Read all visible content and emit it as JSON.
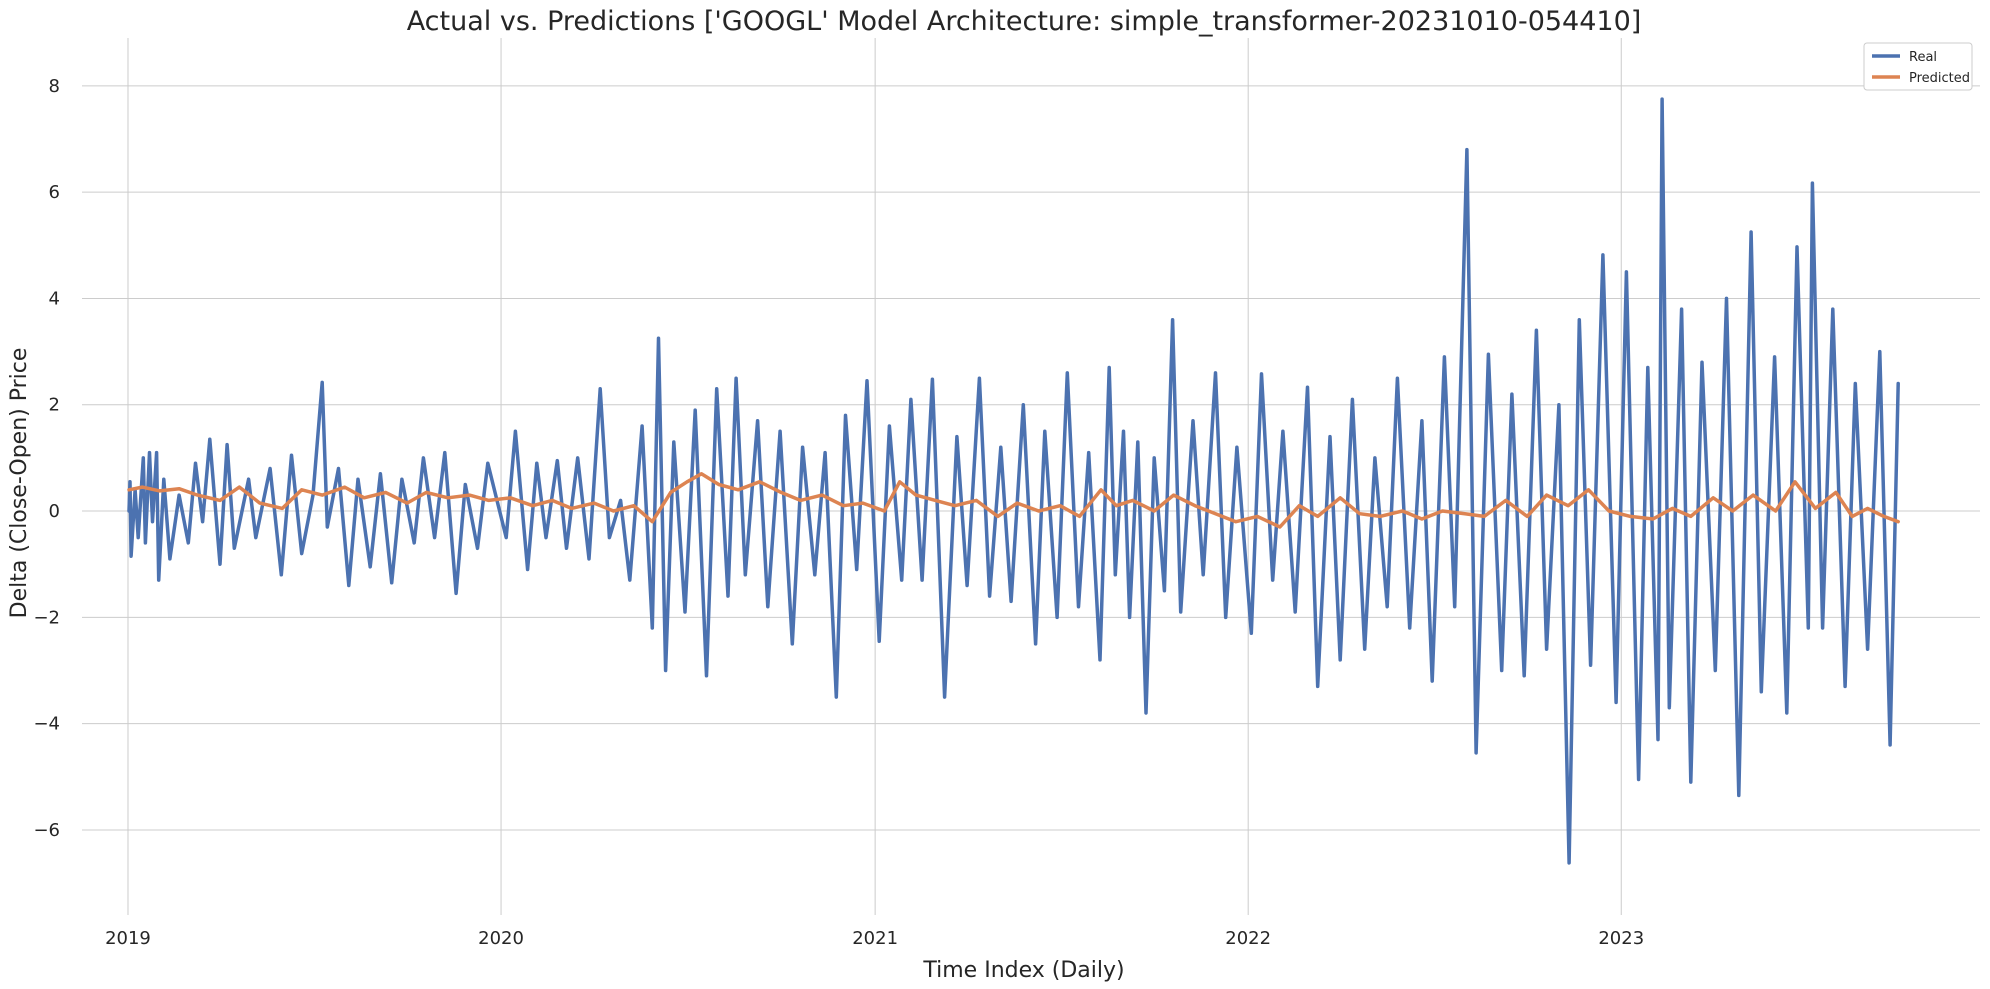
{
  "chart_data": {
    "type": "line",
    "title": "Actual vs. Predictions ['GOOGL' Model Architecture: simple_transformer-20231010-054410]",
    "xlabel": "Time Index (Daily)",
    "ylabel": "Delta (Close-Open) Price",
    "x_axis": {
      "type": "date",
      "range": [
        "2018-11-17",
        "2023-12-18"
      ],
      "ticks": [
        "2019",
        "2020",
        "2021",
        "2022",
        "2023"
      ]
    },
    "y_axis": {
      "range": [
        -7.6,
        8.9
      ],
      "ticks": [
        -6,
        -4,
        -2,
        0,
        2,
        4,
        6,
        8
      ],
      "tick_labels": [
        "−6",
        "−4",
        "−2",
        "0",
        "2",
        "4",
        "6",
        "8"
      ]
    },
    "grid": true,
    "legend": {
      "placement": "top-right"
    },
    "series": [
      {
        "name": "Real",
        "color": "#4c72b0",
        "points": [
          [
            "2019-01-02",
            0.0
          ],
          [
            "2019-01-03",
            0.55
          ],
          [
            "2019-01-04",
            -0.85
          ],
          [
            "2019-01-08",
            0.4
          ],
          [
            "2019-01-11",
            -0.5
          ],
          [
            "2019-01-16",
            1.0
          ],
          [
            "2019-01-18",
            -0.6
          ],
          [
            "2019-01-22",
            1.1
          ],
          [
            "2019-01-25",
            -0.2
          ],
          [
            "2019-01-29",
            1.1
          ],
          [
            "2019-01-31",
            -1.3
          ],
          [
            "2019-02-05",
            0.6
          ],
          [
            "2019-02-11",
            -0.9
          ],
          [
            "2019-02-20",
            0.3
          ],
          [
            "2019-03-01",
            -0.6
          ],
          [
            "2019-03-08",
            0.9
          ],
          [
            "2019-03-15",
            -0.2
          ],
          [
            "2019-03-22",
            1.35
          ],
          [
            "2019-04-01",
            -1.0
          ],
          [
            "2019-04-08",
            1.25
          ],
          [
            "2019-04-15",
            -0.7
          ],
          [
            "2019-04-29",
            0.6
          ],
          [
            "2019-05-06",
            -0.5
          ],
          [
            "2019-05-20",
            0.8
          ],
          [
            "2019-05-31",
            -1.2
          ],
          [
            "2019-06-10",
            1.05
          ],
          [
            "2019-06-20",
            -0.8
          ],
          [
            "2019-07-01",
            0.3
          ],
          [
            "2019-07-10",
            2.42
          ],
          [
            "2019-07-15",
            -0.3
          ],
          [
            "2019-07-26",
            0.8
          ],
          [
            "2019-08-05",
            -1.4
          ],
          [
            "2019-08-14",
            0.6
          ],
          [
            "2019-08-26",
            -1.05
          ],
          [
            "2019-09-05",
            0.7
          ],
          [
            "2019-09-16",
            -1.35
          ],
          [
            "2019-09-26",
            0.6
          ],
          [
            "2019-10-08",
            -0.6
          ],
          [
            "2019-10-17",
            1.0
          ],
          [
            "2019-10-28",
            -0.5
          ],
          [
            "2019-11-07",
            1.1
          ],
          [
            "2019-11-18",
            -1.55
          ],
          [
            "2019-11-27",
            0.5
          ],
          [
            "2019-12-09",
            -0.7
          ],
          [
            "2019-12-19",
            0.9
          ],
          [
            "2020-01-06",
            -0.5
          ],
          [
            "2020-01-15",
            1.5
          ],
          [
            "2020-01-27",
            -1.1
          ],
          [
            "2020-02-05",
            0.9
          ],
          [
            "2020-02-14",
            -0.5
          ],
          [
            "2020-02-25",
            0.95
          ],
          [
            "2020-03-05",
            -0.7
          ],
          [
            "2020-03-16",
            1.0
          ],
          [
            "2020-03-27",
            -0.9
          ],
          [
            "2020-04-07",
            2.3
          ],
          [
            "2020-04-16",
            -0.5
          ],
          [
            "2020-04-27",
            0.2
          ],
          [
            "2020-05-06",
            -1.3
          ],
          [
            "2020-05-18",
            1.6
          ],
          [
            "2020-05-28",
            -2.2
          ],
          [
            "2020-06-03",
            3.25
          ],
          [
            "2020-06-10",
            -3.0
          ],
          [
            "2020-06-18",
            1.3
          ],
          [
            "2020-06-29",
            -1.9
          ],
          [
            "2020-07-09",
            1.9
          ],
          [
            "2020-07-20",
            -3.1
          ],
          [
            "2020-07-30",
            2.3
          ],
          [
            "2020-08-10",
            -1.6
          ],
          [
            "2020-08-18",
            2.5
          ],
          [
            "2020-08-27",
            -1.2
          ],
          [
            "2020-09-08",
            1.7
          ],
          [
            "2020-09-18",
            -1.8
          ],
          [
            "2020-09-30",
            1.5
          ],
          [
            "2020-10-12",
            -2.5
          ],
          [
            "2020-10-22",
            1.2
          ],
          [
            "2020-11-03",
            -1.2
          ],
          [
            "2020-11-13",
            1.1
          ],
          [
            "2020-11-24",
            -3.5
          ],
          [
            "2020-12-03",
            1.8
          ],
          [
            "2020-12-14",
            -1.1
          ],
          [
            "2020-12-24",
            2.45
          ],
          [
            "2021-01-05",
            -2.45
          ],
          [
            "2021-01-15",
            1.6
          ],
          [
            "2021-01-27",
            -1.3
          ],
          [
            "2021-02-05",
            2.1
          ],
          [
            "2021-02-16",
            -1.3
          ],
          [
            "2021-02-26",
            2.48
          ],
          [
            "2021-03-10",
            -3.5
          ],
          [
            "2021-03-22",
            1.4
          ],
          [
            "2021-04-01",
            -1.4
          ],
          [
            "2021-04-13",
            2.5
          ],
          [
            "2021-04-23",
            -1.6
          ],
          [
            "2021-05-04",
            1.2
          ],
          [
            "2021-05-14",
            -1.7
          ],
          [
            "2021-05-26",
            2.0
          ],
          [
            "2021-06-07",
            -2.5
          ],
          [
            "2021-06-16",
            1.5
          ],
          [
            "2021-06-28",
            -2.0
          ],
          [
            "2021-07-08",
            2.6
          ],
          [
            "2021-07-19",
            -1.8
          ],
          [
            "2021-07-29",
            1.1
          ],
          [
            "2021-08-09",
            -2.8
          ],
          [
            "2021-08-18",
            2.7
          ],
          [
            "2021-08-24",
            -1.2
          ],
          [
            "2021-09-01",
            1.5
          ],
          [
            "2021-09-07",
            -2.0
          ],
          [
            "2021-09-15",
            1.3
          ],
          [
            "2021-09-23",
            -3.8
          ],
          [
            "2021-10-01",
            1.0
          ],
          [
            "2021-10-11",
            -1.5
          ],
          [
            "2021-10-19",
            3.6
          ],
          [
            "2021-10-27",
            -1.9
          ],
          [
            "2021-11-08",
            1.7
          ],
          [
            "2021-11-18",
            -1.2
          ],
          [
            "2021-11-30",
            2.6
          ],
          [
            "2021-12-10",
            -2.0
          ],
          [
            "2021-12-21",
            1.2
          ],
          [
            "2022-01-04",
            -2.3
          ],
          [
            "2022-01-14",
            2.58
          ],
          [
            "2022-01-25",
            -1.3
          ],
          [
            "2022-02-04",
            1.5
          ],
          [
            "2022-02-16",
            -1.9
          ],
          [
            "2022-02-28",
            2.33
          ],
          [
            "2022-03-10",
            -3.3
          ],
          [
            "2022-03-22",
            1.4
          ],
          [
            "2022-04-01",
            -2.8
          ],
          [
            "2022-04-13",
            2.1
          ],
          [
            "2022-04-25",
            -2.6
          ],
          [
            "2022-05-05",
            1.0
          ],
          [
            "2022-05-17",
            -1.8
          ],
          [
            "2022-05-27",
            2.5
          ],
          [
            "2022-06-08",
            -2.2
          ],
          [
            "2022-06-20",
            1.7
          ],
          [
            "2022-06-30",
            -3.2
          ],
          [
            "2022-07-12",
            2.9
          ],
          [
            "2022-07-22",
            -1.8
          ],
          [
            "2022-08-03",
            6.8
          ],
          [
            "2022-08-12",
            -4.55
          ],
          [
            "2022-08-24",
            2.95
          ],
          [
            "2022-09-06",
            -3.0
          ],
          [
            "2022-09-16",
            2.2
          ],
          [
            "2022-09-28",
            -3.1
          ],
          [
            "2022-10-10",
            3.4
          ],
          [
            "2022-10-20",
            -2.6
          ],
          [
            "2022-11-01",
            2.0
          ],
          [
            "2022-11-11",
            -6.62
          ],
          [
            "2022-11-21",
            3.6
          ],
          [
            "2022-12-02",
            -2.9
          ],
          [
            "2022-12-14",
            4.82
          ],
          [
            "2022-12-27",
            -3.6
          ],
          [
            "2023-01-06",
            4.5
          ],
          [
            "2023-01-18",
            -5.05
          ],
          [
            "2023-01-27",
            2.7
          ],
          [
            "2023-02-06",
            -4.3
          ],
          [
            "2023-02-10",
            7.75
          ],
          [
            "2023-02-17",
            -3.7
          ],
          [
            "2023-03-01",
            3.8
          ],
          [
            "2023-03-10",
            -5.1
          ],
          [
            "2023-03-21",
            2.8
          ],
          [
            "2023-04-03",
            -3.0
          ],
          [
            "2023-04-14",
            4.0
          ],
          [
            "2023-04-26",
            -5.35
          ],
          [
            "2023-05-08",
            5.25
          ],
          [
            "2023-05-18",
            -3.4
          ],
          [
            "2023-05-31",
            2.9
          ],
          [
            "2023-06-12",
            -3.8
          ],
          [
            "2023-06-22",
            4.97
          ],
          [
            "2023-07-03",
            -2.2
          ],
          [
            "2023-07-07",
            6.17
          ],
          [
            "2023-07-17",
            -2.2
          ],
          [
            "2023-07-27",
            3.8
          ],
          [
            "2023-08-08",
            -3.3
          ],
          [
            "2023-08-18",
            2.4
          ],
          [
            "2023-08-30",
            -2.6
          ],
          [
            "2023-09-11",
            3.0
          ],
          [
            "2023-09-21",
            -4.4
          ],
          [
            "2023-09-29",
            2.4
          ]
        ]
      },
      {
        "name": "Predicted",
        "color": "#dd8452",
        "points": [
          [
            "2019-01-02",
            0.4
          ],
          [
            "2019-01-15",
            0.45
          ],
          [
            "2019-02-01",
            0.38
          ],
          [
            "2019-02-20",
            0.42
          ],
          [
            "2019-03-10",
            0.3
          ],
          [
            "2019-04-01",
            0.2
          ],
          [
            "2019-04-20",
            0.45
          ],
          [
            "2019-05-10",
            0.15
          ],
          [
            "2019-06-01",
            0.05
          ],
          [
            "2019-06-20",
            0.4
          ],
          [
            "2019-07-10",
            0.3
          ],
          [
            "2019-08-01",
            0.45
          ],
          [
            "2019-08-20",
            0.25
          ],
          [
            "2019-09-10",
            0.35
          ],
          [
            "2019-10-01",
            0.15
          ],
          [
            "2019-10-20",
            0.35
          ],
          [
            "2019-11-10",
            0.25
          ],
          [
            "2019-12-01",
            0.3
          ],
          [
            "2019-12-20",
            0.2
          ],
          [
            "2020-01-10",
            0.25
          ],
          [
            "2020-02-01",
            0.1
          ],
          [
            "2020-02-20",
            0.2
          ],
          [
            "2020-03-10",
            0.05
          ],
          [
            "2020-04-01",
            0.15
          ],
          [
            "2020-04-20",
            0.0
          ],
          [
            "2020-05-10",
            0.1
          ],
          [
            "2020-05-28",
            -0.2
          ],
          [
            "2020-06-15",
            0.35
          ],
          [
            "2020-07-01",
            0.55
          ],
          [
            "2020-07-15",
            0.7
          ],
          [
            "2020-08-01",
            0.5
          ],
          [
            "2020-08-20",
            0.4
          ],
          [
            "2020-09-10",
            0.55
          ],
          [
            "2020-10-01",
            0.35
          ],
          [
            "2020-10-20",
            0.2
          ],
          [
            "2020-11-10",
            0.3
          ],
          [
            "2020-12-01",
            0.1
          ],
          [
            "2020-12-20",
            0.15
          ],
          [
            "2021-01-10",
            0.0
          ],
          [
            "2021-01-25",
            0.55
          ],
          [
            "2021-02-10",
            0.3
          ],
          [
            "2021-03-01",
            0.2
          ],
          [
            "2021-03-20",
            0.1
          ],
          [
            "2021-04-10",
            0.2
          ],
          [
            "2021-05-01",
            -0.1
          ],
          [
            "2021-05-20",
            0.15
          ],
          [
            "2021-06-10",
            0.0
          ],
          [
            "2021-07-01",
            0.1
          ],
          [
            "2021-07-20",
            -0.1
          ],
          [
            "2021-08-10",
            0.4
          ],
          [
            "2021-08-25",
            0.1
          ],
          [
            "2021-09-10",
            0.2
          ],
          [
            "2021-10-01",
            0.0
          ],
          [
            "2021-10-20",
            0.3
          ],
          [
            "2021-11-10",
            0.1
          ],
          [
            "2021-11-30",
            -0.05
          ],
          [
            "2021-12-20",
            -0.2
          ],
          [
            "2022-01-10",
            -0.1
          ],
          [
            "2022-02-01",
            -0.3
          ],
          [
            "2022-02-20",
            0.1
          ],
          [
            "2022-03-10",
            -0.1
          ],
          [
            "2022-04-01",
            0.25
          ],
          [
            "2022-04-20",
            -0.05
          ],
          [
            "2022-05-10",
            -0.1
          ],
          [
            "2022-06-01",
            0.0
          ],
          [
            "2022-06-20",
            -0.15
          ],
          [
            "2022-07-10",
            0.0
          ],
          [
            "2022-08-01",
            -0.05
          ],
          [
            "2022-08-20",
            -0.1
          ],
          [
            "2022-09-10",
            0.2
          ],
          [
            "2022-10-01",
            -0.1
          ],
          [
            "2022-10-20",
            0.3
          ],
          [
            "2022-11-10",
            0.1
          ],
          [
            "2022-11-30",
            0.4
          ],
          [
            "2022-12-20",
            0.0
          ],
          [
            "2023-01-10",
            -0.1
          ],
          [
            "2023-02-01",
            -0.15
          ],
          [
            "2023-02-20",
            0.05
          ],
          [
            "2023-03-10",
            -0.1
          ],
          [
            "2023-04-01",
            0.25
          ],
          [
            "2023-04-20",
            0.0
          ],
          [
            "2023-05-10",
            0.3
          ],
          [
            "2023-06-01",
            0.0
          ],
          [
            "2023-06-20",
            0.55
          ],
          [
            "2023-07-10",
            0.05
          ],
          [
            "2023-07-30",
            0.35
          ],
          [
            "2023-08-15",
            -0.1
          ],
          [
            "2023-08-30",
            0.05
          ],
          [
            "2023-09-15",
            -0.1
          ],
          [
            "2023-09-29",
            -0.2
          ]
        ]
      }
    ]
  }
}
